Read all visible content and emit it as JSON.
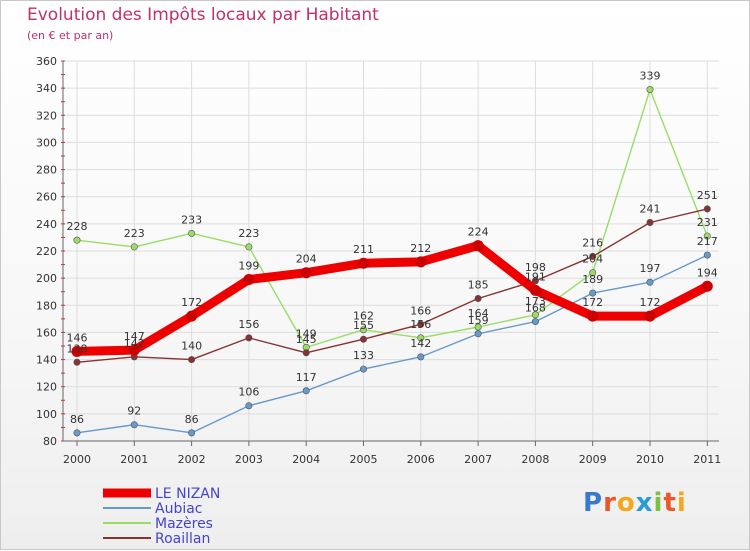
{
  "title": "Evolution des Impôts locaux par Habitant",
  "subtitle": "(en € et par an)",
  "logo": {
    "letters": [
      "P",
      "r",
      "o",
      "x",
      "i",
      "t",
      "i"
    ],
    "colors": [
      "#3a78c8",
      "#e8582a",
      "#f2a81d",
      "#2a9ad8",
      "#7cc242",
      "#e8582a",
      "#f2a81d"
    ]
  },
  "chart_data": {
    "type": "line",
    "title": "Evolution des Impôts locaux par Habitant",
    "subtitle": "(en € et par an)",
    "xlabel": "",
    "ylabel": "",
    "categories": [
      "2000",
      "2001",
      "2002",
      "2003",
      "2004",
      "2005",
      "2006",
      "2007",
      "2008",
      "2009",
      "2010",
      "2011"
    ],
    "ylim": [
      80,
      360
    ],
    "yticks": [
      80,
      100,
      120,
      140,
      160,
      180,
      200,
      220,
      240,
      260,
      280,
      300,
      320,
      340,
      360
    ],
    "grid": true,
    "legend_position": "bottom-left",
    "series": [
      {
        "name": "LE NIZAN",
        "color": "#ee0000",
        "emphasis": true,
        "values": [
          146,
          147,
          172,
          199,
          204,
          211,
          212,
          224,
          191,
          172,
          172,
          194
        ]
      },
      {
        "name": "Aubiac",
        "color": "#6699cc",
        "emphasis": false,
        "values": [
          86,
          92,
          86,
          106,
          117,
          133,
          142,
          159,
          168,
          189,
          197,
          217
        ]
      },
      {
        "name": "Mazères",
        "color": "#99dd66",
        "emphasis": false,
        "values": [
          228,
          223,
          233,
          223,
          149,
          162,
          156,
          164,
          173,
          204,
          339,
          231
        ]
      },
      {
        "name": "Roaillan",
        "color": "#883333",
        "emphasis": false,
        "values": [
          138,
          142,
          140,
          156,
          145,
          155,
          166,
          185,
          198,
          216,
          241,
          251
        ]
      }
    ]
  }
}
